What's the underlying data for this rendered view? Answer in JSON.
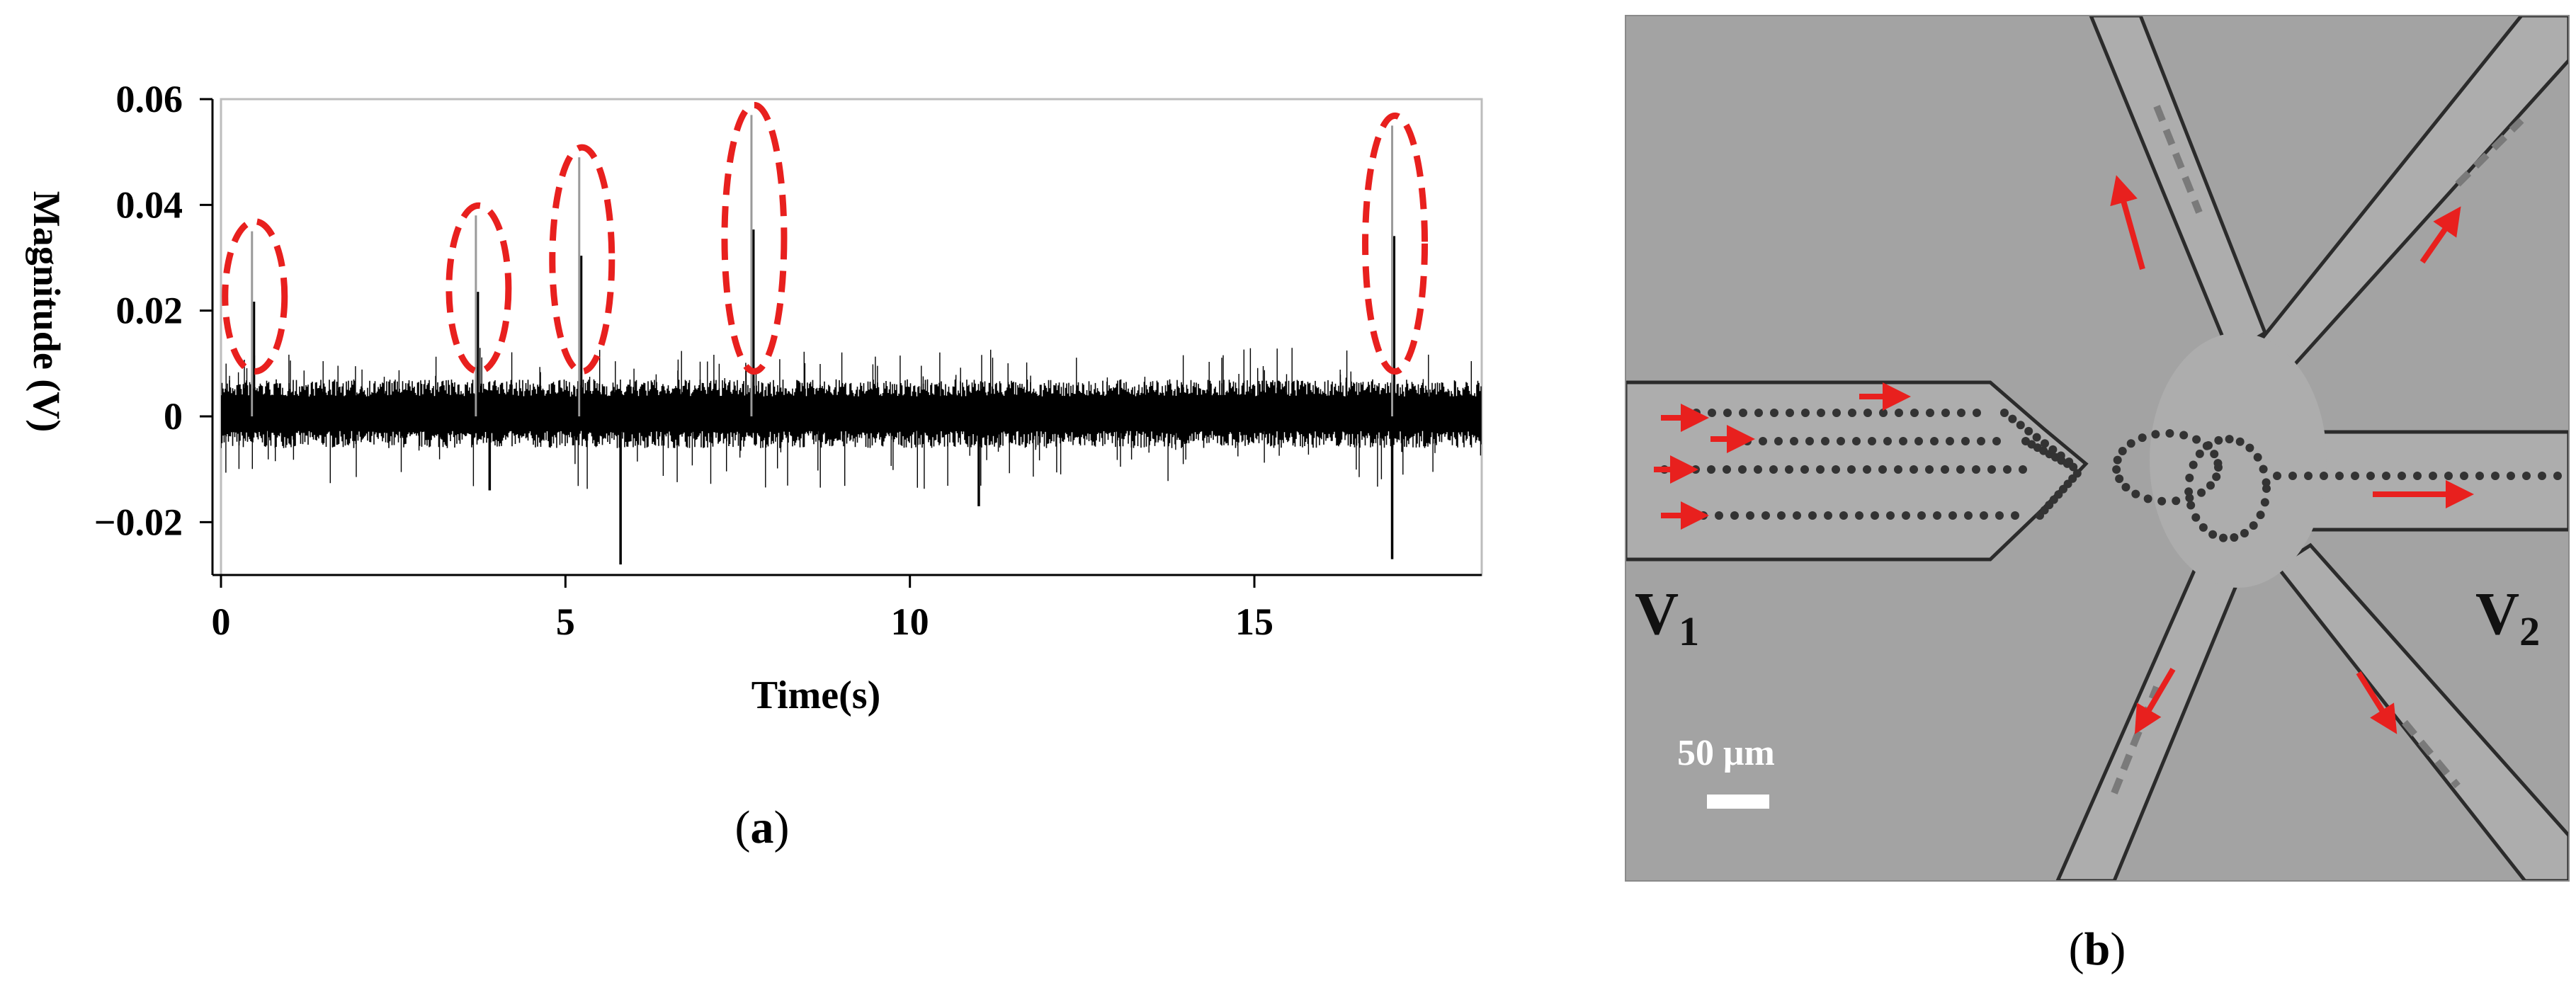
{
  "panel_a": {
    "caption_open": "(",
    "caption_letter": "a",
    "caption_close": ")",
    "chart_data": {
      "type": "line",
      "title": "",
      "xlabel": "Time(s)",
      "ylabel": "Magnitude (V)",
      "xlim": [
        0,
        18.3
      ],
      "ylim": [
        -0.03,
        0.06
      ],
      "xticks": [
        0,
        5,
        10,
        15
      ],
      "xtick_labels": [
        "0",
        "5",
        "10",
        "15"
      ],
      "yticks": [
        -0.02,
        0,
        0.02,
        0.04,
        0.06
      ],
      "ytick_labels": [
        "−0.02",
        "0",
        "0.02",
        "0.04",
        "0.06"
      ],
      "grid": false,
      "noise_band": [
        -0.006,
        0.007
      ],
      "series": [
        {
          "values_kind": "signal",
          "peaks": [
            {
              "x": 0.45,
              "y": 0.035
            },
            {
              "x": 3.7,
              "y": 0.038
            },
            {
              "x": 5.2,
              "y": 0.049
            },
            {
              "x": 7.7,
              "y": 0.057
            },
            {
              "x": 17.0,
              "y": 0.055
            }
          ],
          "negative_spikes": [
            {
              "x": 5.8,
              "y": -0.028
            },
            {
              "x": 17.0,
              "y": -0.027
            },
            {
              "x": 11.0,
              "y": -0.017
            },
            {
              "x": 3.9,
              "y": -0.014
            }
          ]
        }
      ],
      "annotations": [
        {
          "type": "dashed-ellipse",
          "color": "#e8201e",
          "around_peak_x": 0.45
        },
        {
          "type": "dashed-ellipse",
          "color": "#e8201e",
          "around_peak_x": 3.7
        },
        {
          "type": "dashed-ellipse",
          "color": "#e8201e",
          "around_peak_x": 5.2
        },
        {
          "type": "dashed-ellipse",
          "color": "#e8201e",
          "around_peak_x": 7.7
        },
        {
          "type": "dashed-ellipse",
          "color": "#e8201e",
          "around_peak_x": 17.0
        }
      ]
    }
  },
  "panel_b": {
    "caption_open": "(",
    "caption_letter": "b",
    "caption_close": ")",
    "label_v1_main": "V",
    "label_v1_sub": "1",
    "label_v2_main": "V",
    "label_v2_sub": "2",
    "scale_bar_label": "50 μm",
    "arrow_color": "#e8201e"
  }
}
